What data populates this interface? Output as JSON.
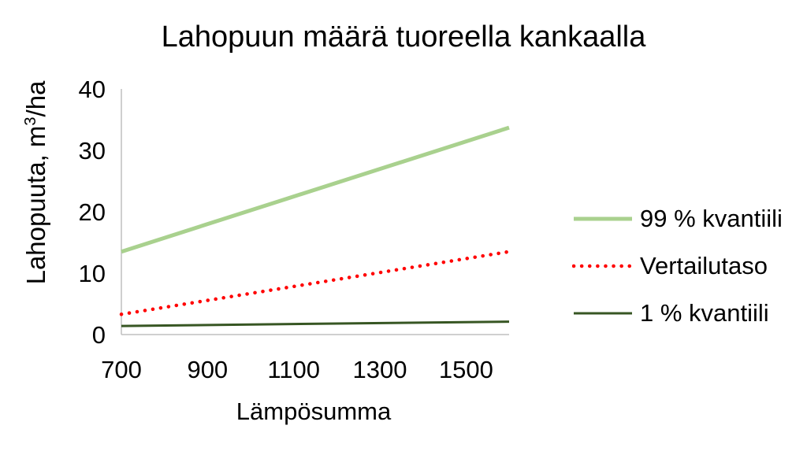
{
  "chart_data": {
    "type": "line",
    "title": "Lahopuun määrä tuoreella kankaalla",
    "xlabel": "Lämpösumma",
    "ylabel_main": "Lahopuuta, m",
    "ylabel_sup": "3",
    "ylabel_end": "/ha",
    "xlim": [
      700,
      1600
    ],
    "ylim": [
      0,
      40
    ],
    "x_ticks": [
      700,
      900,
      1100,
      1300,
      1500
    ],
    "y_ticks": [
      0,
      10,
      20,
      30,
      40
    ],
    "grid": false,
    "legend_position": "right",
    "x": [
      700,
      1600
    ],
    "series": [
      {
        "name": "99 % kvantiili",
        "values": [
          13.5,
          33.7
        ],
        "color": "#a9d18e",
        "style": "solid"
      },
      {
        "name": "Vertailutaso",
        "values": [
          3.3,
          13.5
        ],
        "color": "#ff0000",
        "style": "dotted"
      },
      {
        "name": "1 % kvantiili",
        "values": [
          1.4,
          2.1
        ],
        "color": "#375623",
        "style": "solid"
      }
    ]
  }
}
